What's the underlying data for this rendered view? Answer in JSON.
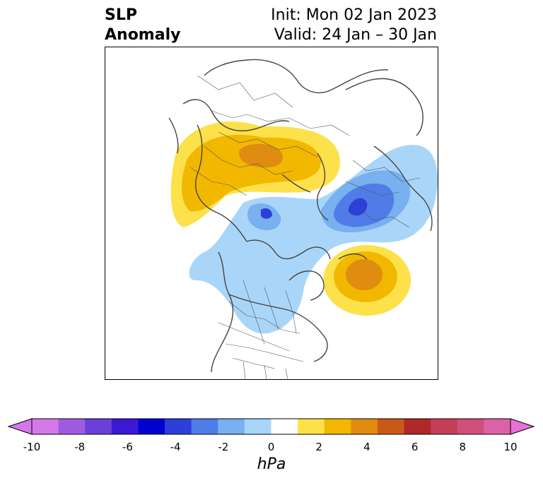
{
  "title": {
    "left_line1": "SLP",
    "left_line2": "Anomaly",
    "right_line1": "Init: Mon 02 Jan 2023",
    "right_line2": "Valid: 24 Jan – 30 Jan"
  },
  "colorbar": {
    "units": "hPa",
    "ticks": [
      "-10",
      "-8",
      "-6",
      "-4",
      "-2",
      "0",
      "2",
      "4",
      "6",
      "8",
      "10"
    ],
    "bins": [
      "#d677e8",
      "#a05ce0",
      "#6b3fd9",
      "#3d18d2",
      "#0000cf",
      "#2c3fd8",
      "#4f7ce6",
      "#78b0f0",
      "#a9d6f8",
      "#ffffff",
      "#fde14a",
      "#f2b800",
      "#e08c10",
      "#c85a18",
      "#b02828",
      "#c43e58",
      "#d0507c",
      "#dc62a8"
    ],
    "under_color": "#d677e8",
    "over_color": "#e870d8"
  },
  "anomalies": {
    "positive_light": "#fde14a",
    "positive_mid": "#f2b800",
    "positive_strong": "#e08c10",
    "negative_light": "#a9d6f8",
    "negative_mid": "#78b0f0",
    "negative_strong": "#4f7ce6",
    "negative_core": "#2c3fd8"
  }
}
